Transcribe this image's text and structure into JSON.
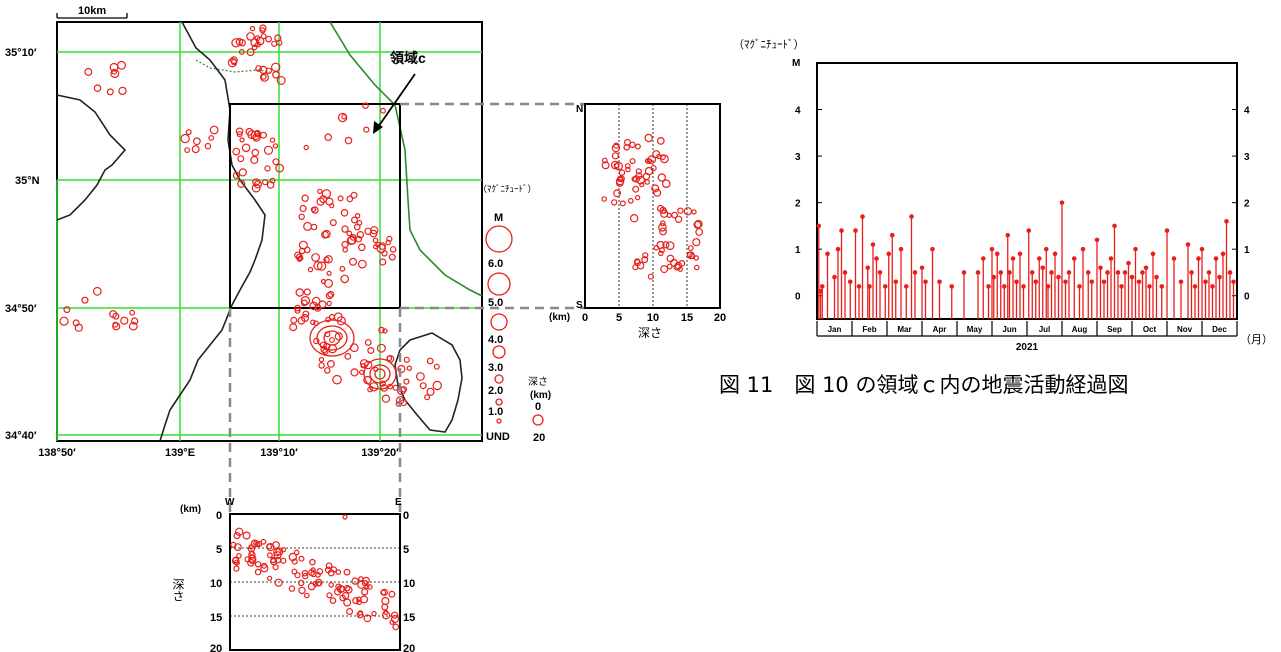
{
  "map": {
    "scale_label": "10km",
    "lat_labels": [
      "35°10′",
      "35°N",
      "34°50′",
      "34°40′"
    ],
    "lon_labels": [
      "138°50′",
      "139°E",
      "139°10′",
      "139°20′"
    ],
    "region_label": "領域c",
    "legend": {
      "mag_header": "（ﾏｸﾞﾆﾁｭｰﾄﾞ）",
      "m_label": "M",
      "mag_labels": [
        "6.0",
        "5.0",
        "4.0",
        "3.0",
        "2.0",
        "1.0",
        "UND"
      ],
      "depth_header": "深さ",
      "depth_unit": "(km)",
      "depth_labels": [
        "0",
        "20"
      ]
    }
  },
  "ns_section": {
    "top_label": "N",
    "bottom_label": "S",
    "unit_label": "(km)",
    "x_ticks": [
      "0",
      "5",
      "10",
      "15",
      "20"
    ],
    "axis_label": "深さ"
  },
  "ew_section": {
    "unit_label": "(km)",
    "left_label": "W",
    "right_label": "E",
    "y_ticks": [
      "0",
      "5",
      "10",
      "15",
      "20"
    ],
    "axis_label": "深さ"
  },
  "caption": "図 11　図 10 の領域ｃ内の地震活動経過図",
  "colors": {
    "quake": "#e8201c",
    "grid": "#33dd33",
    "fault": "#2a8a2a",
    "coast": "#222222"
  },
  "chart_data": {
    "type": "stem",
    "title": "",
    "ylabel": "（ﾏｸﾞﾆﾁｭｰﾄﾞ）",
    "ylabel2": "M",
    "xlabel": "2021",
    "x_unit": "（月）",
    "ylim": [
      -0.5,
      5
    ],
    "y_ticks": [
      0,
      1,
      2,
      3,
      4
    ],
    "x_domain": [
      0,
      12
    ],
    "months": [
      "Jan",
      "Feb",
      "Mar",
      "Apr",
      "May",
      "Jun",
      "Jul",
      "Aug",
      "Sep",
      "Oct",
      "Nov",
      "Dec"
    ],
    "x": [
      0.05,
      0.1,
      0.15,
      0.3,
      0.5,
      0.6,
      0.7,
      0.8,
      0.95,
      1.1,
      1.2,
      1.3,
      1.45,
      1.5,
      1.6,
      1.7,
      1.8,
      1.95,
      2.05,
      2.15,
      2.25,
      2.4,
      2.55,
      2.7,
      2.8,
      3.0,
      3.1,
      3.3,
      3.5,
      3.85,
      4.2,
      4.6,
      4.75,
      4.9,
      5.0,
      5.05,
      5.15,
      5.25,
      5.35,
      5.45,
      5.5,
      5.6,
      5.7,
      5.8,
      5.9,
      6.05,
      6.15,
      6.25,
      6.35,
      6.45,
      6.55,
      6.6,
      6.7,
      6.8,
      6.9,
      7.0,
      7.1,
      7.2,
      7.35,
      7.5,
      7.6,
      7.75,
      7.85,
      8.0,
      8.1,
      8.2,
      8.3,
      8.4,
      8.5,
      8.6,
      8.7,
      8.8,
      8.9,
      9.0,
      9.1,
      9.2,
      9.3,
      9.4,
      9.5,
      9.6,
      9.7,
      9.85,
      10.0,
      10.2,
      10.4,
      10.6,
      10.7,
      10.8,
      10.9,
      11.0,
      11.1,
      11.2,
      11.3,
      11.4,
      11.5,
      11.6,
      11.7,
      11.8,
      11.9
    ],
    "y": [
      1.5,
      0.1,
      0.2,
      0.9,
      0.4,
      1.0,
      1.4,
      0.5,
      0.3,
      1.4,
      0.2,
      1.7,
      0.6,
      0.2,
      1.1,
      0.8,
      0.5,
      0.2,
      0.9,
      1.3,
      0.3,
      1.0,
      0.2,
      1.7,
      0.5,
      0.6,
      0.3,
      1.0,
      0.3,
      0.2,
      0.5,
      0.5,
      0.8,
      0.2,
      1.0,
      0.4,
      0.9,
      0.5,
      0.2,
      1.3,
      0.5,
      0.8,
      0.3,
      0.9,
      0.2,
      1.4,
      0.5,
      0.3,
      0.8,
      0.6,
      1.0,
      0.2,
      0.5,
      0.9,
      0.4,
      2.0,
      0.3,
      0.5,
      0.8,
      0.2,
      1.0,
      0.5,
      0.3,
      1.2,
      0.6,
      0.3,
      0.5,
      0.8,
      1.5,
      0.5,
      0.2,
      0.5,
      0.7,
      0.4,
      1.0,
      0.3,
      0.5,
      0.6,
      0.2,
      0.9,
      0.4,
      0.2,
      1.4,
      0.8,
      0.3,
      1.1,
      0.5,
      0.2,
      0.8,
      1.0,
      0.3,
      0.5,
      0.2,
      0.8,
      0.4,
      0.9,
      1.6,
      0.5,
      0.3
    ]
  }
}
